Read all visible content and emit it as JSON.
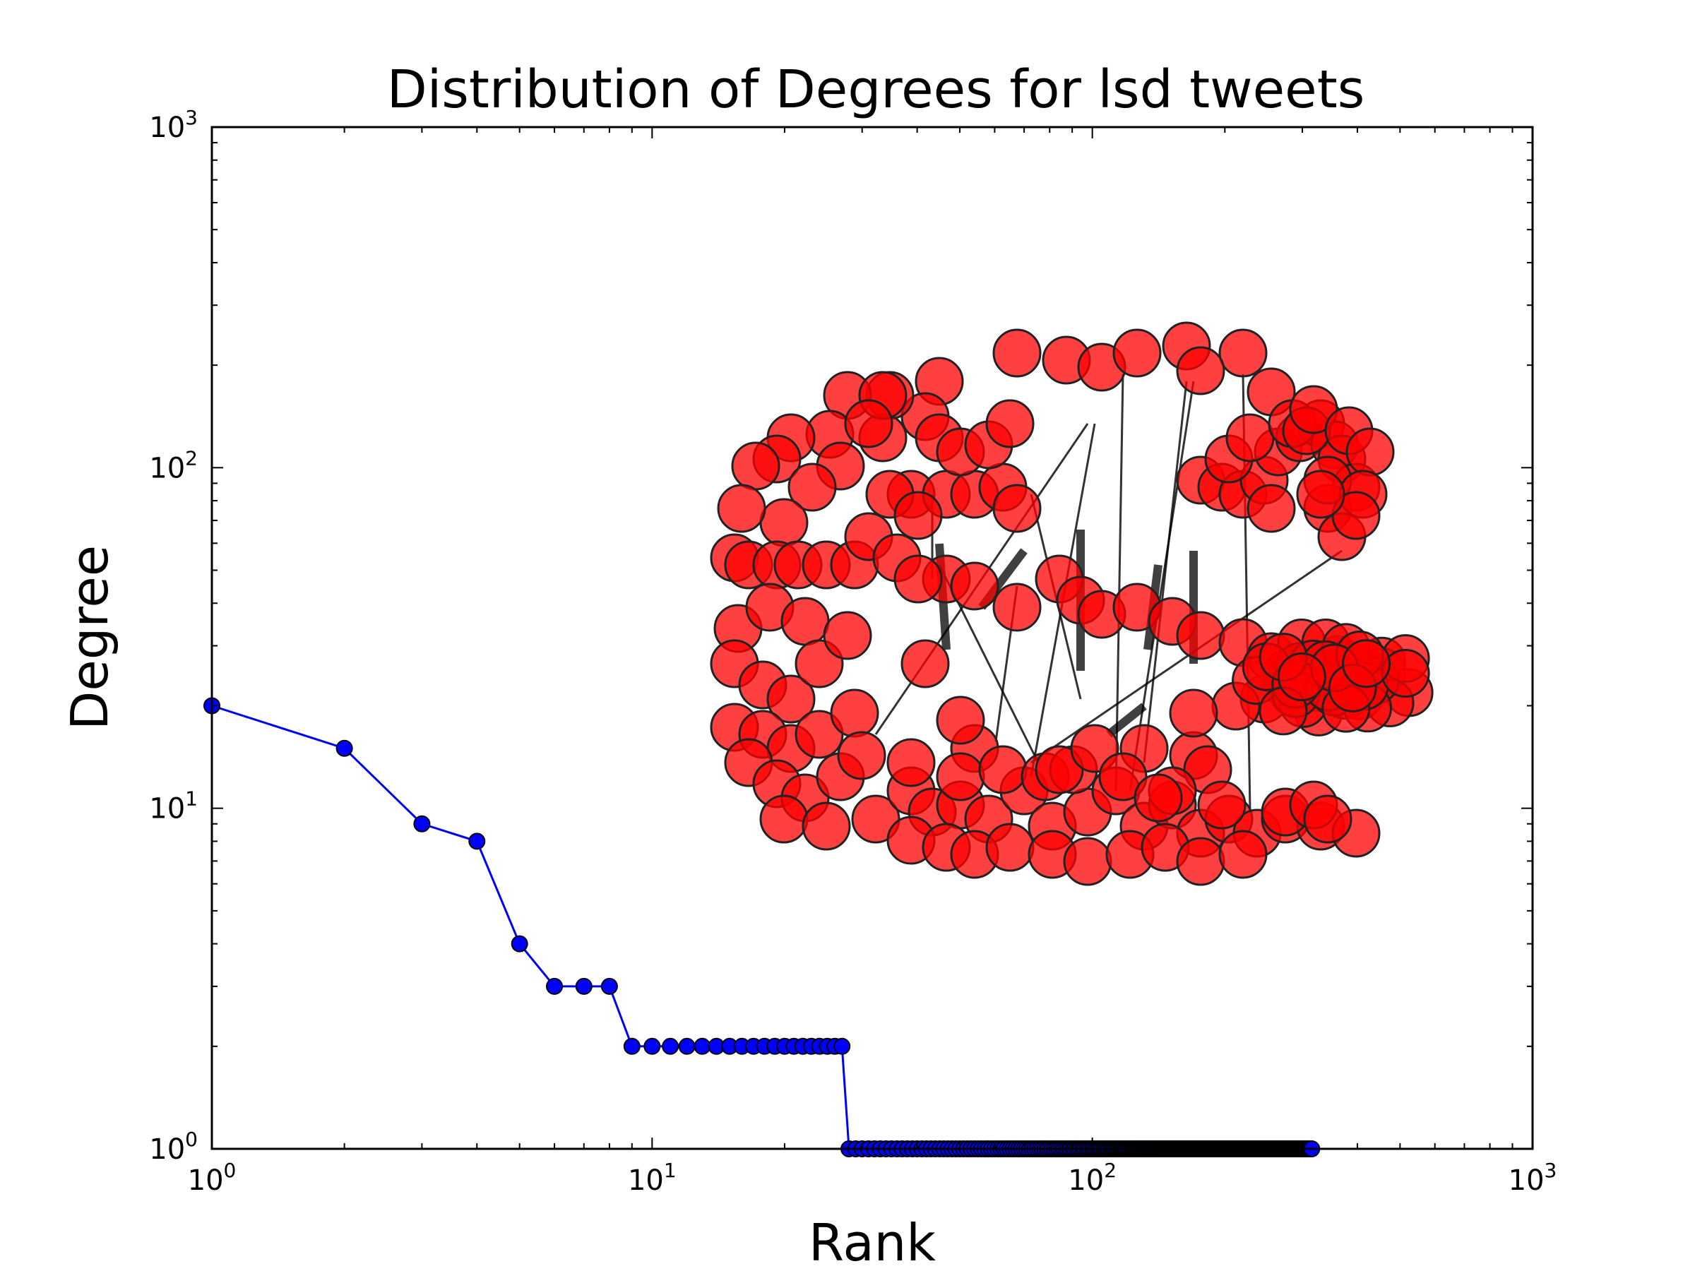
{
  "chart_data": {
    "type": "scatter",
    "title": "Distribution of Degrees for lsd tweets",
    "xlabel": "Rank",
    "ylabel": "Degree",
    "xscale": "log",
    "yscale": "log",
    "xlim": [
      1,
      1000
    ],
    "ylim": [
      1,
      1000
    ],
    "x_ticks": [
      {
        "base": "10",
        "exp": "0"
      },
      {
        "base": "10",
        "exp": "1"
      },
      {
        "base": "10",
        "exp": "2"
      },
      {
        "base": "10",
        "exp": "3"
      }
    ],
    "y_ticks": [
      {
        "base": "10",
        "exp": "0"
      },
      {
        "base": "10",
        "exp": "1"
      },
      {
        "base": "10",
        "exp": "2"
      },
      {
        "base": "10",
        "exp": "3"
      }
    ],
    "grid": false,
    "legend": "none",
    "series": [
      {
        "style": "line-with-markers",
        "color": "#0000ff",
        "marker_color": "#0000ff",
        "head_points": [
          [
            1,
            20
          ],
          [
            2,
            15
          ],
          [
            3,
            9
          ],
          [
            4,
            8
          ],
          [
            5,
            4
          ],
          [
            6,
            3
          ],
          [
            7,
            3
          ],
          [
            8,
            3
          ]
        ],
        "degree_2_ranks": [
          9,
          27
        ],
        "degree_1_ranks": [
          28,
          315
        ]
      }
    ],
    "inset": {
      "type": "network-graph",
      "node_color": "#ff0000",
      "edge_color": "#000000"
    }
  }
}
